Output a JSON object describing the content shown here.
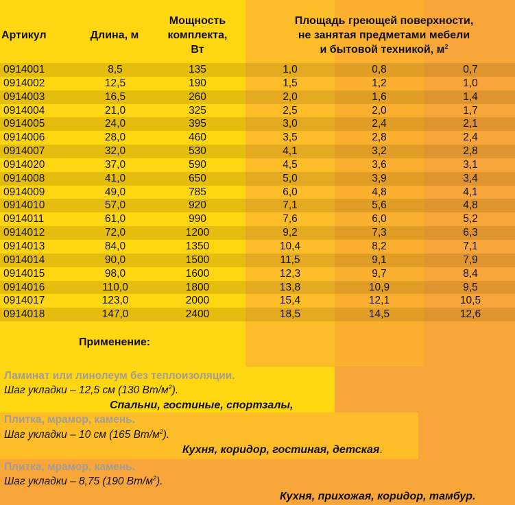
{
  "headers": {
    "article": "Артикул",
    "length": "Длина, м",
    "power_lines": [
      "Мощность",
      "комплекта,",
      "Вт"
    ],
    "area_lines": [
      "Площадь греющей поверхности,",
      "не занятая предметами мебели",
      "и бытовой техникой, м"
    ],
    "area_unit_sup": "2"
  },
  "rows": [
    {
      "art": "0914001",
      "len": "8,5",
      "pow": "135",
      "a1": "1,0",
      "a2": "0,8",
      "a3": "0,7"
    },
    {
      "art": "0914002",
      "len": "12,5",
      "pow": "190",
      "a1": "1,5",
      "a2": "1,2",
      "a3": "1,0"
    },
    {
      "art": "0914003",
      "len": "16,5",
      "pow": "260",
      "a1": "2,0",
      "a2": "1,6",
      "a3": "1,4"
    },
    {
      "art": "0914004",
      "len": "21,0",
      "pow": "325",
      "a1": "2,5",
      "a2": "2,0",
      "a3": "1,7"
    },
    {
      "art": "0914005",
      "len": "24,0",
      "pow": "395",
      "a1": "3,0",
      "a2": "2,4",
      "a3": "2,1"
    },
    {
      "art": "0914006",
      "len": "28,0",
      "pow": "460",
      "a1": "3,5",
      "a2": "2,8",
      "a3": "2,4"
    },
    {
      "art": "0914007",
      "len": "32,0",
      "pow": "530",
      "a1": "4,1",
      "a2": "3,2",
      "a3": "2,8"
    },
    {
      "art": "0914020",
      "len": "37,0",
      "pow": "590",
      "a1": "4,5",
      "a2": "3,6",
      "a3": "3,1"
    },
    {
      "art": "0914008",
      "len": "41,0",
      "pow": "650",
      "a1": "5,0",
      "a2": "3,9",
      "a3": "3,4"
    },
    {
      "art": "0914009",
      "len": "49,0",
      "pow": "785",
      "a1": "6,0",
      "a2": "4,8",
      "a3": "4,1"
    },
    {
      "art": "0914010",
      "len": "57,0",
      "pow": "920",
      "a1": "7,1",
      "a2": "5,6",
      "a3": "4,8"
    },
    {
      "art": "0914011",
      "len": "61,0",
      "pow": "990",
      "a1": "7,6",
      "a2": "6,0",
      "a3": "5,2"
    },
    {
      "art": "0914012",
      "len": "72,0",
      "pow": "1200",
      "a1": "9,2",
      "a2": "7,3",
      "a3": "6,3"
    },
    {
      "art": "0914013",
      "len": "84,0",
      "pow": "1350",
      "a1": "10,4",
      "a2": "8,2",
      "a3": "7,1"
    },
    {
      "art": "0914014",
      "len": "90,0",
      "pow": "1500",
      "a1": "11,5",
      "a2": "9,1",
      "a3": "7,9"
    },
    {
      "art": "0914015",
      "len": "98,0",
      "pow": "1600",
      "a1": "12,3",
      "a2": "9,7",
      "a3": "8,4"
    },
    {
      "art": "0914016",
      "len": "110,0",
      "pow": "1800",
      "a1": "13,8",
      "a2": "10,9",
      "a3": "9,5"
    },
    {
      "art": "0914017",
      "len": "123,0",
      "pow": "2000",
      "a1": "15,4",
      "a2": "12,1",
      "a3": "10,5"
    },
    {
      "art": "0914018",
      "len": "147,0",
      "pow": "2400",
      "a1": "18,5",
      "a2": "14,5",
      "a3": "12,6"
    }
  ],
  "application": {
    "title": "Применение:",
    "items": [
      {
        "surface": "Ламинат или линолеум без теплоизоляции.",
        "step_pre": "Шаг   укладки – 12,5 см (130 Вт/м",
        "step_sup": "2",
        "step_post": ").",
        "rooms": "Спальни, гостиные, спортзалы,"
      },
      {
        "surface": "Плитка, мрамор, камень.",
        "step_pre": "Шаг   укладки – 10 см (165 Вт/м",
        "step_sup": "2",
        "step_post": ").",
        "rooms": "Кухня, коридор, гостиная, детская",
        "rooms_end": "."
      },
      {
        "surface": "Плитка, мрамор, камень.",
        "step_pre": "Шаг   укладки – 8,75 (190 Вт/м",
        "step_sup": "2",
        "step_post": ").",
        "rooms": "Кухня, прихожая, коридор, тамбур."
      }
    ]
  }
}
